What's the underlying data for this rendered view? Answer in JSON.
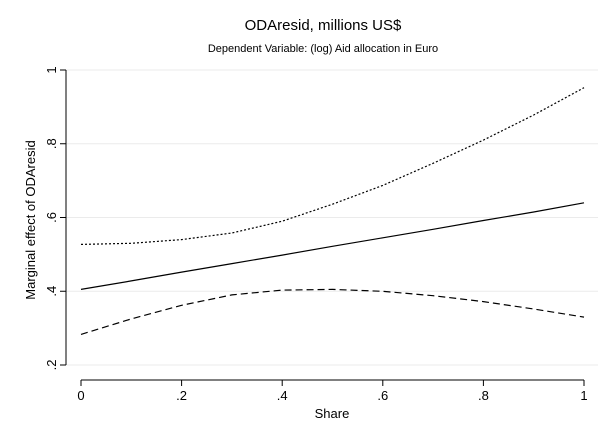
{
  "chart_data": {
    "type": "line",
    "title": "ODAresid, millions US$",
    "subtitle": "Dependent Variable: (log) Aid allocation in Euro",
    "xlabel": "Share",
    "ylabel": "Marginal effect of ODAresid",
    "xlim": [
      0,
      1
    ],
    "ylim": [
      0.2,
      1.0
    ],
    "x_ticks": [
      0,
      0.2,
      0.4,
      0.6,
      0.8,
      1
    ],
    "x_tick_labels": [
      "0",
      ".2",
      ".4",
      ".6",
      ".8",
      "1"
    ],
    "y_ticks": [
      0.2,
      0.4,
      0.6,
      0.8,
      1.0
    ],
    "y_tick_labels": [
      ".2",
      ".4",
      ".6",
      ".8",
      "1"
    ],
    "grid": "horizontal",
    "x": [
      0,
      0.1,
      0.2,
      0.3,
      0.4,
      0.5,
      0.6,
      0.7,
      0.8,
      0.9,
      1.0
    ],
    "series": [
      {
        "style": "solid",
        "values": [
          0.405,
          0.428,
          0.452,
          0.475,
          0.498,
          0.522,
          0.545,
          0.568,
          0.592,
          0.615,
          0.64
        ]
      },
      {
        "style": "dotted",
        "values": [
          0.527,
          0.53,
          0.54,
          0.558,
          0.59,
          0.636,
          0.687,
          0.747,
          0.81,
          0.878,
          0.952
        ]
      },
      {
        "style": "dashed",
        "values": [
          0.283,
          0.325,
          0.362,
          0.39,
          0.403,
          0.405,
          0.4,
          0.388,
          0.372,
          0.352,
          0.33
        ]
      }
    ]
  }
}
